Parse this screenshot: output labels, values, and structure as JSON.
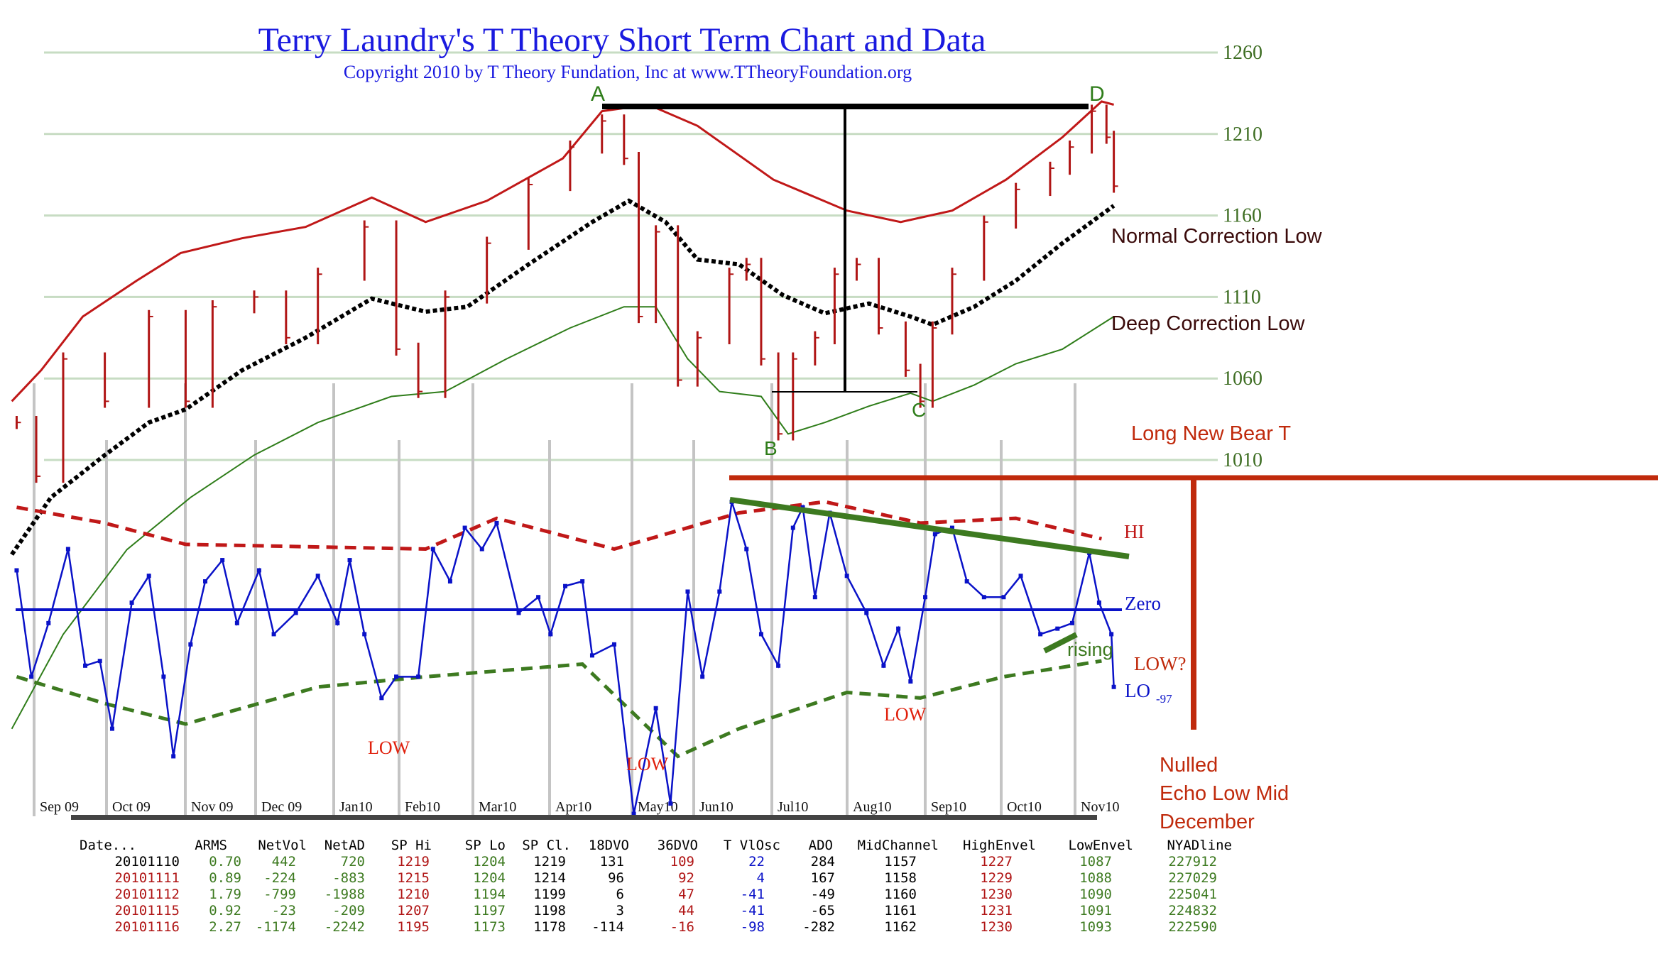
{
  "title": "Terry Laundry's T Theory Short Term Chart and Data",
  "subtitle": "Copyright 2010 by T Theory Fundation, Inc at www.TTheoryFoundation.org",
  "colors": {
    "title": "#1a1adf",
    "price_bars": "#b01515",
    "upper_envelope": "#c01818",
    "mid_channel": "#000000",
    "lower_envelope": "#2f7d1a",
    "oscillator": "#0a12c8",
    "hi_line": "#c01818",
    "lo_line": "#3d7a20",
    "bear_t": "#c02a0c",
    "grid": "#c7dcc3",
    "month_grid": "#c4c4c4"
  },
  "annotations": {
    "a": "A",
    "b": "B",
    "c": "C",
    "d": "D",
    "normal_correction": "Normal Correction Low",
    "deep_correction": "Deep Correction Low",
    "long_bear_t": "Long New Bear T",
    "hi": "HI",
    "zero": "Zero",
    "lo": "LO",
    "lo_value": "-97",
    "rising": "rising",
    "low_q": "LOW?",
    "low1": "LOW",
    "low2": "LOW",
    "low3": "LOW",
    "nulled": [
      "Nulled",
      "Echo Low Mid",
      "December"
    ]
  },
  "chart_data": [
    {
      "type": "line",
      "title": "Terry Laundry's T Theory Short Term Chart and Data",
      "y_ticks": [
        1260,
        1210,
        1160,
        1110,
        1060,
        1010
      ],
      "x_ticks": [
        "Sep 09",
        "Oct 09",
        "Nov 09",
        "Dec 09",
        "Jan10",
        "Feb10",
        "Mar10",
        "Apr10",
        "May10",
        "Jun10",
        "Jul10",
        "Aug10",
        "Sep10",
        "Oct10",
        "Nov10"
      ],
      "grid": true,
      "series": [
        {
          "role": "price",
          "x": [
            "2009-08-25",
            "2009-09-02",
            "2009-09-13",
            "2009-09-30",
            "2009-10-18",
            "2009-11-02",
            "2009-11-13",
            "2009-11-30",
            "2009-12-13",
            "2009-12-26",
            "2010-01-14",
            "2010-01-27",
            "2010-02-05",
            "2010-02-16",
            "2010-03-05",
            "2010-03-22",
            "2010-04-08",
            "2010-04-21",
            "2010-04-30",
            "2010-05-06",
            "2010-05-13",
            "2010-05-22",
            "2010-05-30",
            "2010-06-12",
            "2010-06-19",
            "2010-06-25",
            "2010-07-02",
            "2010-07-08",
            "2010-07-17",
            "2010-07-25",
            "2010-08-03",
            "2010-08-12",
            "2010-08-23",
            "2010-08-29",
            "2010-09-03",
            "2010-09-11",
            "2010-09-24",
            "2010-10-07",
            "2010-10-21",
            "2010-10-29",
            "2010-11-07",
            "2010-11-13",
            "2010-11-16"
          ],
          "values": [
            1033,
            1000,
            1072,
            1046,
            1098,
            1046,
            1104,
            1110,
            1085,
            1124,
            1153,
            1078,
            1052,
            1110,
            1143,
            1179,
            1202,
            1218,
            1195,
            1098,
            1150,
            1059,
            1085,
            1124,
            1130,
            1072,
            1026,
            1072,
            1085,
            1124,
            1130,
            1091,
            1065,
            1046,
            1091,
            1124,
            1156,
            1176,
            1189,
            1202,
            1224,
            1208,
            1178
          ]
        },
        {
          "role": "upper-envelope",
          "x": [
            "2009-08-23",
            "2009-09-04",
            "2009-09-21",
            "2009-10-13",
            "2009-10-31",
            "2009-11-25",
            "2009-12-21",
            "2010-01-17",
            "2010-02-08",
            "2010-03-05",
            "2010-04-05",
            "2010-04-21",
            "2010-05-10",
            "2010-05-30",
            "2010-06-30",
            "2010-07-30",
            "2010-08-21",
            "2010-09-11",
            "2010-10-03",
            "2010-10-26",
            "2010-11-11",
            "2010-11-16"
          ],
          "values": [
            1046,
            1065,
            1098,
            1120,
            1137,
            1146,
            1153,
            1171,
            1156,
            1169,
            1195,
            1224,
            1228,
            1215,
            1182,
            1163,
            1156,
            1163,
            1182,
            1208,
            1230,
            1228
          ]
        },
        {
          "role": "mid-channel",
          "x": [
            "2009-08-23",
            "2009-09-08",
            "2009-09-30",
            "2009-10-18",
            "2009-11-02",
            "2009-11-25",
            "2009-12-21",
            "2010-01-17",
            "2010-02-08",
            "2010-02-25",
            "2010-03-22",
            "2010-04-17",
            "2010-05-02",
            "2010-05-17",
            "2010-05-30",
            "2010-06-16",
            "2010-07-04",
            "2010-07-21",
            "2010-08-08",
            "2010-08-25",
            "2010-09-03",
            "2010-09-20",
            "2010-10-07",
            "2010-10-26",
            "2010-11-16"
          ],
          "values": [
            952,
            987,
            1013,
            1033,
            1041,
            1065,
            1085,
            1109,
            1101,
            1104,
            1130,
            1156,
            1169,
            1156,
            1133,
            1130,
            1111,
            1100,
            1106,
            1098,
            1093,
            1104,
            1120,
            1143,
            1166
          ]
        },
        {
          "role": "lower-envelope",
          "x": [
            "2009-08-23",
            "2009-09-13",
            "2009-10-09",
            "2009-11-04",
            "2009-11-30",
            "2009-12-26",
            "2010-01-25",
            "2010-02-16",
            "2010-03-13",
            "2010-04-08",
            "2010-04-30",
            "2010-05-13",
            "2010-05-26",
            "2010-06-08",
            "2010-06-25",
            "2010-07-06",
            "2010-07-21",
            "2010-08-08",
            "2010-08-25",
            "2010-09-03",
            "2010-09-20",
            "2010-10-07",
            "2010-10-26",
            "2010-11-16"
          ],
          "values": [
            845,
            903,
            955,
            987,
            1013,
            1033,
            1049,
            1052,
            1072,
            1091,
            1104,
            1104,
            1072,
            1052,
            1049,
            1026,
            1033,
            1043,
            1051,
            1046,
            1056,
            1069,
            1078,
            1098
          ]
        }
      ]
    },
    {
      "type": "line",
      "series": [
        {
          "role": "oscillator",
          "x": [
            "2009-08-25",
            "2009-08-31",
            "2009-09-07",
            "2009-09-15",
            "2009-09-22",
            "2009-09-28",
            "2009-10-03",
            "2009-10-11",
            "2009-10-18",
            "2009-10-24",
            "2009-10-28",
            "2009-11-04",
            "2009-11-10",
            "2009-11-17",
            "2009-11-23",
            "2009-12-02",
            "2009-12-08",
            "2009-12-17",
            "2009-12-26",
            "2010-01-03",
            "2010-01-08",
            "2010-01-14",
            "2010-01-21",
            "2010-01-27",
            "2010-02-05",
            "2010-02-11",
            "2010-02-18",
            "2010-02-24",
            "2010-03-03",
            "2010-03-09",
            "2010-03-18",
            "2010-03-26",
            "2010-03-31",
            "2010-04-06",
            "2010-04-13",
            "2010-04-17",
            "2010-04-26",
            "2010-05-04",
            "2010-05-13",
            "2010-05-19",
            "2010-05-26",
            "2010-06-01",
            "2010-06-08",
            "2010-06-13",
            "2010-06-19",
            "2010-06-25",
            "2010-07-02",
            "2010-07-08",
            "2010-07-12",
            "2010-07-17",
            "2010-07-23",
            "2010-07-30",
            "2010-08-07",
            "2010-08-14",
            "2010-08-20",
            "2010-08-25",
            "2010-08-31",
            "2010-09-04",
            "2010-09-11",
            "2010-09-17",
            "2010-09-24",
            "2010-10-02",
            "2010-10-09",
            "2010-10-17",
            "2010-10-24",
            "2010-10-30",
            "2010-11-06",
            "2010-11-10",
            "2010-11-15",
            "2010-11-16"
          ],
          "values": [
            50,
            -85,
            -17,
            77,
            -71,
            -65,
            -151,
            9,
            43,
            -85,
            -186,
            -44,
            36,
            63,
            -17,
            50,
            -31,
            -4,
            43,
            -17,
            63,
            -31,
            -112,
            -85,
            -85,
            77,
            36,
            104,
            77,
            110,
            -4,
            16,
            -31,
            30,
            36,
            -58,
            -44,
            -259,
            -125,
            -246,
            23,
            -85,
            23,
            137,
            77,
            -31,
            -71,
            104,
            130,
            16,
            123,
            43,
            -4,
            -71,
            -24,
            -91,
            16,
            96,
            104,
            36,
            16,
            16,
            43,
            -31,
            -24,
            -17,
            72,
            9,
            -31,
            -98
          ]
        },
        {
          "role": "hi",
          "x": [
            "2009-08-25",
            "2009-09-30",
            "2009-11-02",
            "2010-02-08",
            "2010-03-09",
            "2010-04-26",
            "2010-06-16",
            "2010-07-21",
            "2010-08-29",
            "2010-10-07",
            "2010-11-11"
          ],
          "values": [
            130,
            110,
            83,
            77,
            116,
            77,
            123,
            137,
            110,
            116,
            90
          ]
        },
        {
          "role": "lo",
          "x": [
            "2009-08-25",
            "2009-09-30",
            "2009-11-02",
            "2009-12-26",
            "2010-02-08",
            "2010-04-13",
            "2010-05-22",
            "2010-06-16",
            "2010-07-30",
            "2010-08-29",
            "2010-10-02",
            "2010-11-11"
          ],
          "values": [
            -85,
            -119,
            -145,
            -98,
            -85,
            -69,
            -186,
            -151,
            -105,
            -112,
            -85,
            -65
          ]
        }
      ]
    },
    {
      "type": "table",
      "headers": [
        "Date...",
        "ARMS",
        "NetVol",
        "NetAD",
        "SP Hi",
        "SP Lo",
        "SP Cl.",
        "18DVO",
        "36DVO",
        "T VlOsc",
        "ADO",
        "MidChannel",
        "HighEnvel",
        "LowEnvel",
        "NYADline"
      ],
      "rows": [
        [
          "20101110",
          "0.70",
          "442",
          "720",
          "1219",
          "1204",
          "1219",
          "131",
          "109",
          "22",
          "284",
          "1157",
          "1227",
          "1087",
          "227912"
        ],
        [
          "20101111",
          "0.89",
          "-224",
          "-883",
          "1215",
          "1204",
          "1214",
          "96",
          "92",
          "4",
          "167",
          "1158",
          "1229",
          "1088",
          "227029"
        ],
        [
          "20101112",
          "1.79",
          "-799",
          "-1988",
          "1210",
          "1194",
          "1199",
          "6",
          "47",
          "-41",
          "-49",
          "1160",
          "1230",
          "1090",
          "225041"
        ],
        [
          "20101115",
          "0.92",
          "-23",
          "-209",
          "1207",
          "1197",
          "1198",
          "3",
          "44",
          "-41",
          "-65",
          "1161",
          "1231",
          "1091",
          "224832"
        ],
        [
          "20101116",
          "2.27",
          "-1174",
          "-2242",
          "1195",
          "1173",
          "1178",
          "-114",
          "-16",
          "-98",
          "-282",
          "1162",
          "1230",
          "1093",
          "222590"
        ]
      ]
    }
  ]
}
